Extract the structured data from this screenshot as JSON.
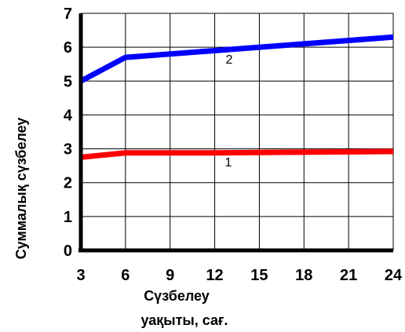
{
  "chart_data": {
    "type": "line",
    "xlabel_lines": [
      "Сүзбелеу",
      "уақыты, сағ."
    ],
    "ylabel": "Суммалық сүзбелеу",
    "x": [
      3,
      6,
      9,
      12,
      15,
      18,
      21,
      24
    ],
    "xlim": [
      3,
      24
    ],
    "ylim": [
      0,
      7
    ],
    "xticks": [
      "3",
      "6",
      "9",
      "12",
      "15",
      "18",
      "21",
      "24"
    ],
    "yticks": [
      "0",
      "1",
      "2",
      "3",
      "4",
      "5",
      "6",
      "7"
    ],
    "grid": true,
    "series": [
      {
        "name": "1",
        "color": "#ff0000",
        "x": [
          3,
          6,
          12,
          18,
          24
        ],
        "values": [
          2.75,
          2.88,
          2.88,
          2.9,
          2.92
        ]
      },
      {
        "name": "2",
        "color": "#0000ff",
        "x": [
          3,
          6,
          12,
          18,
          24
        ],
        "values": [
          5.0,
          5.7,
          5.9,
          6.1,
          6.3
        ]
      }
    ]
  }
}
